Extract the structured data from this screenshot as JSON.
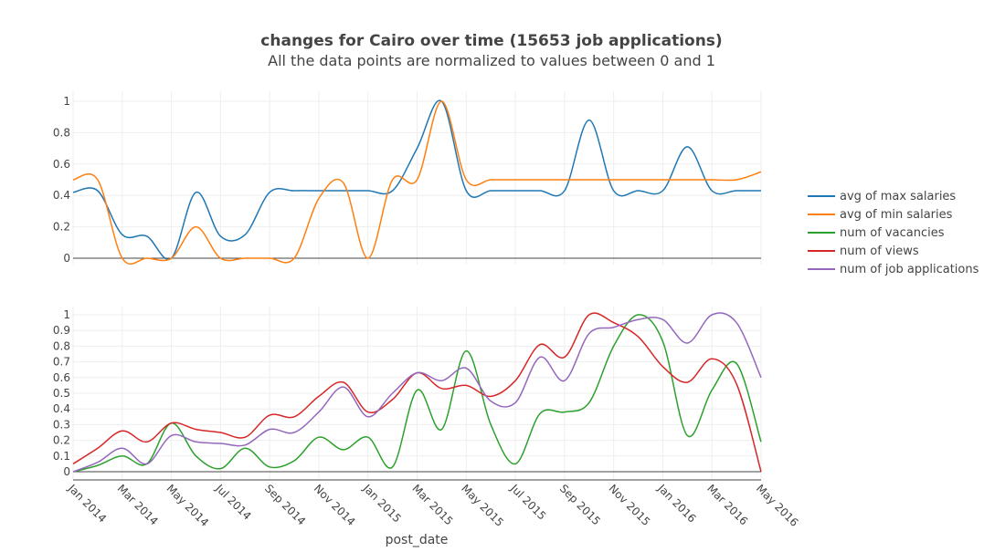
{
  "chart_data": {
    "type": "line",
    "title": "changes for Cairo over time (15653 job applications)",
    "subtitle": "All the data points are normalized to values between 0 and 1",
    "xlabel": "post_date",
    "x": [
      "2014-01",
      "2014-02",
      "2014-03",
      "2014-04",
      "2014-05",
      "2014-06",
      "2014-07",
      "2014-08",
      "2014-09",
      "2014-10",
      "2014-11",
      "2014-12",
      "2015-01",
      "2015-02",
      "2015-03",
      "2015-04",
      "2015-05",
      "2015-06",
      "2015-07",
      "2015-08",
      "2015-09",
      "2015-10",
      "2015-11",
      "2015-12",
      "2016-01",
      "2016-02",
      "2016-03",
      "2016-04",
      "2016-05"
    ],
    "x_ticks": [
      "Jan 2014",
      "Mar 2014",
      "May 2014",
      "Jul 2014",
      "Sep 2014",
      "Nov 2014",
      "Jan 2015",
      "Mar 2015",
      "May 2015",
      "Jul 2015",
      "Sep 2015",
      "Nov 2015",
      "Jan 2016",
      "Mar 2016",
      "May 2016"
    ],
    "x_tick_dates": [
      "2014-01",
      "2014-03",
      "2014-05",
      "2014-07",
      "2014-09",
      "2014-11",
      "2015-01",
      "2015-03",
      "2015-05",
      "2015-07",
      "2015-09",
      "2015-11",
      "2016-01",
      "2016-03",
      "2016-05"
    ],
    "legend_position": "right",
    "grid": true,
    "panels": [
      {
        "ylim": [
          -0.05,
          1.05
        ],
        "y_ticks": [
          "0",
          "0.2",
          "0.4",
          "0.6",
          "0.8",
          "1"
        ],
        "y_tick_values": [
          0,
          0.2,
          0.4,
          0.6,
          0.8,
          1
        ],
        "series": [
          {
            "name": "avg of max salaries",
            "color": "#1f77b4",
            "values": [
              0.42,
              0.43,
              0.15,
              0.14,
              0.0,
              0.42,
              0.14,
              0.15,
              0.42,
              0.43,
              0.43,
              0.43,
              0.43,
              0.43,
              0.7,
              1.0,
              0.43,
              0.43,
              0.43,
              0.43,
              0.43,
              0.88,
              0.43,
              0.43,
              0.43,
              0.71,
              0.43,
              0.43,
              0.43
            ]
          },
          {
            "name": "avg of min salaries",
            "color": "#ff7f0e",
            "values": [
              0.5,
              0.5,
              0.0,
              0.0,
              0.0,
              0.2,
              0.0,
              0.0,
              0.0,
              0.0,
              0.38,
              0.48,
              0.0,
              0.5,
              0.5,
              1.0,
              0.5,
              0.5,
              0.5,
              0.5,
              0.5,
              0.5,
              0.5,
              0.5,
              0.5,
              0.5,
              0.5,
              0.5,
              0.55
            ]
          }
        ]
      },
      {
        "ylim": [
          -0.05,
          1.05
        ],
        "y_ticks": [
          "0",
          "0.1",
          "0.2",
          "0.3",
          "0.4",
          "0.5",
          "0.6",
          "0.7",
          "0.8",
          "0.9",
          "1"
        ],
        "y_tick_values": [
          0,
          0.1,
          0.2,
          0.3,
          0.4,
          0.5,
          0.6,
          0.7,
          0.8,
          0.9,
          1
        ],
        "series": [
          {
            "name": "num of vacancies",
            "color": "#2ca02c",
            "values": [
              0.0,
              0.04,
              0.1,
              0.05,
              0.31,
              0.1,
              0.02,
              0.15,
              0.03,
              0.07,
              0.22,
              0.14,
              0.22,
              0.03,
              0.52,
              0.27,
              0.77,
              0.3,
              0.05,
              0.37,
              0.38,
              0.44,
              0.8,
              1.0,
              0.83,
              0.23,
              0.52,
              0.69,
              0.19
            ]
          },
          {
            "name": "num of views",
            "color": "#d62728",
            "values": [
              0.05,
              0.15,
              0.26,
              0.19,
              0.31,
              0.27,
              0.25,
              0.22,
              0.36,
              0.35,
              0.48,
              0.57,
              0.38,
              0.46,
              0.63,
              0.53,
              0.55,
              0.48,
              0.58,
              0.81,
              0.73,
              1.0,
              0.95,
              0.86,
              0.67,
              0.57,
              0.72,
              0.56,
              0.0
            ]
          },
          {
            "name": "num of job applications",
            "color": "#9467bd",
            "values": [
              0.0,
              0.06,
              0.15,
              0.05,
              0.23,
              0.19,
              0.18,
              0.17,
              0.27,
              0.25,
              0.38,
              0.54,
              0.35,
              0.5,
              0.63,
              0.58,
              0.66,
              0.45,
              0.44,
              0.73,
              0.58,
              0.88,
              0.92,
              0.97,
              0.97,
              0.82,
              1.0,
              0.95,
              0.6
            ]
          }
        ]
      }
    ]
  }
}
